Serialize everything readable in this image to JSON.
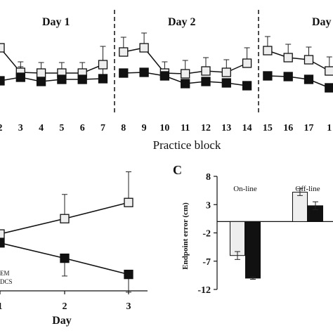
{
  "chart_data": [
    {
      "panel": "",
      "type": "line",
      "day_labels": [
        "Day 1",
        "Day 2",
        "Day"
      ],
      "categories": [
        "2",
        "3",
        "4",
        "5",
        "6",
        "7",
        "8",
        "9",
        "10",
        "11",
        "12",
        "13",
        "14",
        "15",
        "16",
        "17",
        "1"
      ],
      "xlabel": "Practice block",
      "series": [
        {
          "name": "",
          "marker": "open-square",
          "color": "#eeeeee",
          "values": [
            68,
            103,
            104,
            104,
            104,
            92,
            74,
            68,
            104,
            105,
            101,
            103,
            90,
            72,
            82,
            85,
            101
          ],
          "err": [
            0,
            9,
            9,
            9,
            9,
            20,
            15,
            15,
            10,
            13,
            13,
            12,
            16,
            14,
            13,
            12,
            14
          ]
        },
        {
          "name": "",
          "marker": "filled-square",
          "color": "#111111",
          "values": [
            115,
            110,
            116,
            113,
            113,
            112,
            104,
            103,
            108,
            119,
            116,
            118,
            122,
            108,
            109,
            113,
            125
          ],
          "err": [
            0,
            9,
            9,
            9,
            9,
            10,
            0,
            0,
            0,
            0,
            0,
            0,
            0,
            0,
            0,
            0,
            0
          ]
        }
      ]
    },
    {
      "panel": "",
      "type": "line",
      "categories": [
        "2",
        "3"
      ],
      "first_tick_fragment": "1",
      "xlabel": "Day",
      "legend_fragments": [
        "EM",
        "DCS"
      ],
      "series": [
        {
          "name": "",
          "marker": "open-square",
          "color": "#eeeeee",
          "values": [
            2.5,
            4.5
          ],
          "first_value": 0.6,
          "err": [
            3,
            3.8
          ]
        },
        {
          "name": "",
          "marker": "filled-square",
          "color": "#111111",
          "values": [
            -2.4,
            -4.4
          ],
          "first_value": -0.5,
          "err": [
            2.2,
            2.2
          ]
        }
      ]
    },
    {
      "panel": "C",
      "type": "bar",
      "categories": [
        "On-line",
        "Off-line"
      ],
      "ylabel": "Endpoint error (cm)",
      "ylim": [
        -12,
        8
      ],
      "yticks": [
        "8",
        "3",
        "-2",
        "-7",
        "-12"
      ],
      "series": [
        {
          "name": "",
          "color": "#eeeeee",
          "values": [
            -6,
            5.2
          ],
          "err": [
            0.7,
            0.6
          ]
        },
        {
          "name": "",
          "color": "#111111",
          "values": [
            -10,
            2.8
          ],
          "err": [
            0.2,
            0.7
          ]
        }
      ]
    }
  ]
}
